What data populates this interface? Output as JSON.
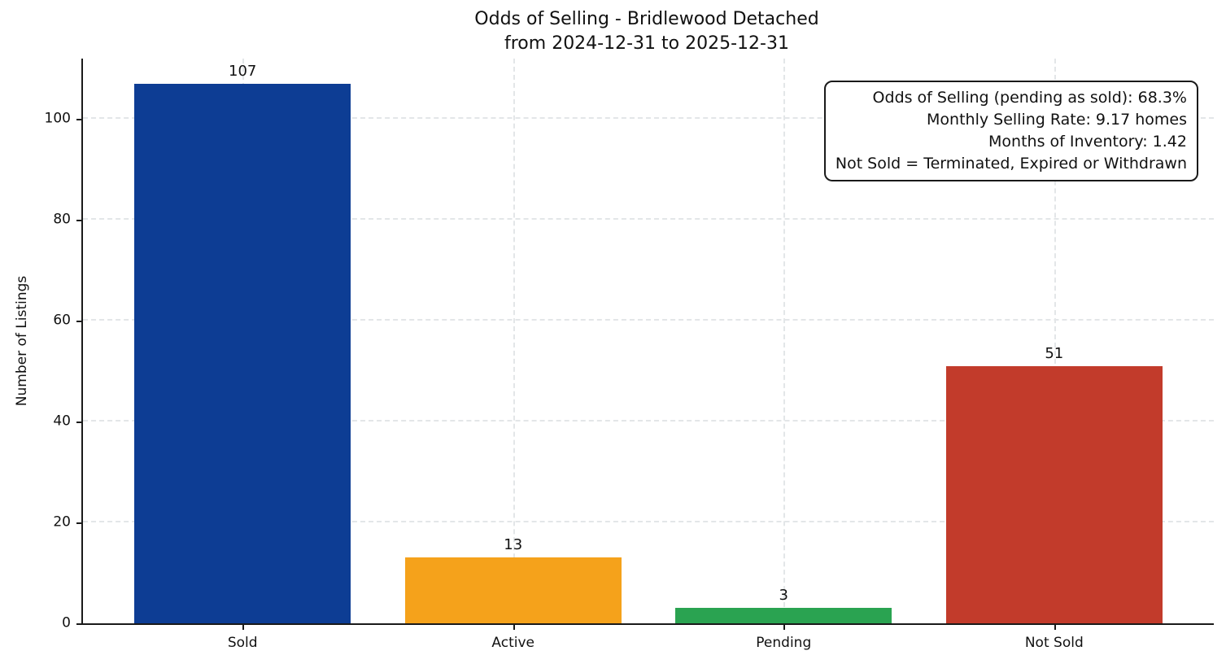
{
  "title": "Odds of Selling - Bridlewood Detached",
  "subtitle": "from 2024-12-31 to 2025-12-31",
  "annotation": {
    "lines": [
      "Odds of Selling (pending as sold): 68.3%",
      "Monthly Selling Rate: 9.17 homes",
      "Months of Inventory: 1.42",
      "Not Sold = Terminated, Expired or Withdrawn"
    ]
  },
  "chart_data": {
    "type": "bar",
    "title": "Odds of Selling - Bridlewood Detached\nfrom 2024-12-31 to 2025-12-31",
    "categories": [
      "Sold",
      "Active",
      "Pending",
      "Not Sold"
    ],
    "values": [
      107,
      13,
      3,
      51
    ],
    "bar_colors": [
      "#0d3d94",
      "#f5a21b",
      "#2aa351",
      "#c23b2b"
    ],
    "xlabel": "",
    "ylabel": "Number of Listings",
    "ylim": [
      0,
      112
    ],
    "yticks": [
      0,
      20,
      40,
      60,
      80,
      100
    ],
    "grid": true,
    "grid_style": "dashed",
    "bar_width_fraction": 0.8,
    "legend": null,
    "stats_box": {
      "odds_of_selling_pct": 68.3,
      "monthly_selling_rate_homes": 9.17,
      "months_of_inventory": 1.42,
      "not_sold_definition": "Terminated, Expired or Withdrawn"
    }
  }
}
